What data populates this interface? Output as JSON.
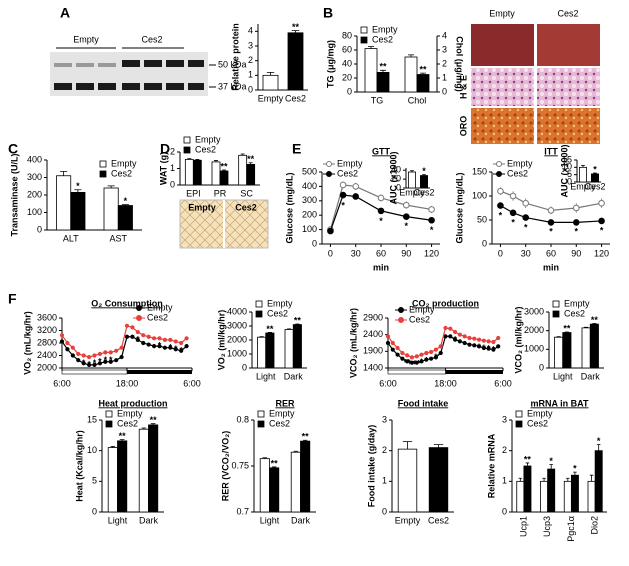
{
  "figure": {
    "panel_labels": [
      "A",
      "B",
      "C",
      "D",
      "E",
      "F"
    ],
    "blot": {
      "lanes": [
        "Empty",
        "Ces2"
      ],
      "markers": [
        "50 kDa",
        "37 kDa"
      ]
    },
    "histology": {
      "columns": [
        "Empty",
        "Ces2"
      ],
      "rows": [
        "H & E",
        "ORO"
      ]
    },
    "wat_images": [
      "Empty",
      "Ces2"
    ]
  },
  "chart_data": [
    {
      "type": "bar",
      "ylabel": "Relative protein",
      "categories": [
        "Empty",
        "Ces2"
      ],
      "series": [
        {
          "values": [
            1.0,
            3.9
          ],
          "errors": [
            0.2,
            0.15
          ],
          "colors": [
            "#ffffff",
            "#000000"
          ],
          "significance": [
            null,
            "**"
          ]
        }
      ],
      "ylim": [
        0,
        4.5
      ],
      "yticks": [
        0,
        1,
        2,
        3,
        4
      ]
    },
    {
      "type": "bar",
      "ylabel": "TG (μg/mg)",
      "y2label": "Chol (μg/mg)",
      "categories": [
        "TG",
        "Chol"
      ],
      "category_axis": [
        "y",
        "y2"
      ],
      "series": [
        {
          "name": "Empty",
          "color": "#ffffff",
          "values": [
            62,
            2.5
          ],
          "errors": [
            3,
            0.15
          ]
        },
        {
          "name": "Ces2",
          "color": "#000000",
          "values": [
            28,
            1.25
          ],
          "errors": [
            3,
            0.1
          ],
          "significance": [
            "**",
            "**"
          ]
        }
      ],
      "ylim": [
        0,
        80
      ],
      "yticks": [
        0,
        20,
        40,
        60,
        80
      ],
      "y2lim": [
        0,
        4
      ],
      "y2ticks": [
        0,
        1,
        2,
        3,
        4
      ],
      "legend": "top-left"
    },
    {
      "type": "bar",
      "ylabel": "Transaminase (U/L)",
      "categories": [
        "ALT",
        "AST"
      ],
      "series": [
        {
          "name": "Empty",
          "color": "#ffffff",
          "values": [
            310,
            240
          ],
          "errors": [
            25,
            12
          ]
        },
        {
          "name": "Ces2",
          "color": "#000000",
          "values": [
            215,
            140
          ],
          "errors": [
            15,
            5
          ],
          "significance": [
            "*",
            "*"
          ]
        }
      ],
      "ylim": [
        0,
        400
      ],
      "yticks": [
        0,
        100,
        200,
        300,
        400
      ],
      "legend": "top-right"
    },
    {
      "type": "bar",
      "ylabel": "WAT (g)",
      "categories": [
        "EPI",
        "PR",
        "SC"
      ],
      "series": [
        {
          "name": "Empty",
          "color": "#ffffff",
          "values": [
            1.55,
            1.4,
            1.8
          ],
          "errors": [
            0.05,
            0.08,
            0.08
          ]
        },
        {
          "name": "Ces2",
          "color": "#000000",
          "values": [
            1.5,
            0.85,
            1.25
          ],
          "errors": [
            0.05,
            0.06,
            0.1
          ],
          "significance": [
            null,
            "**",
            "**"
          ]
        }
      ],
      "ylim": [
        0,
        2
      ],
      "yticks": [
        0,
        1,
        2
      ],
      "legend": "top-left"
    },
    {
      "type": "line",
      "title": "GTT",
      "ylabel": "Glucose (mg/dL)",
      "xlabel": "min",
      "x": [
        0,
        15,
        30,
        60,
        90,
        120
      ],
      "series": [
        {
          "name": "Empty",
          "color": "#777777",
          "marker_fill": "#ffffff",
          "values": [
            100,
            410,
            400,
            320,
            270,
            240
          ],
          "errors": [
            10,
            25,
            25,
            25,
            25,
            25
          ]
        },
        {
          "name": "Ces2",
          "color": "#000000",
          "marker_fill": "#000000",
          "values": [
            90,
            340,
            330,
            230,
            190,
            165
          ],
          "errors": [
            10,
            20,
            20,
            20,
            15,
            15
          ],
          "significance": [
            null,
            "*",
            null,
            "*",
            "*",
            "*"
          ]
        }
      ],
      "xlim": [
        -10,
        130
      ],
      "xticks": [
        0,
        30,
        60,
        90,
        120
      ],
      "ylim": [
        0,
        500
      ],
      "yticks": [
        0,
        100,
        200,
        300,
        400,
        500
      ],
      "legend": "top-left"
    },
    {
      "type": "bar",
      "ylabel": "AUC (x1000)",
      "categories": [
        "Empty",
        "Ces2"
      ],
      "series": [
        {
          "values": [
            36,
            28
          ],
          "errors": [
            3,
            2
          ],
          "colors": [
            "#ffffff",
            "#000000"
          ],
          "significance": [
            null,
            "*"
          ]
        }
      ],
      "ylim": [
        0,
        45
      ],
      "yticks": [
        0,
        20,
        40
      ]
    },
    {
      "type": "line",
      "title": "ITT",
      "ylabel": "Glucose (mg/dL)",
      "xlabel": "min",
      "x": [
        0,
        15,
        30,
        60,
        90,
        120
      ],
      "series": [
        {
          "name": "Empty",
          "color": "#777777",
          "marker_fill": "#ffffff",
          "values": [
            110,
            100,
            85,
            70,
            75,
            85
          ],
          "errors": [
            8,
            10,
            10,
            8,
            10,
            10
          ]
        },
        {
          "name": "Ces2",
          "color": "#000000",
          "marker_fill": "#000000",
          "values": [
            80,
            65,
            55,
            45,
            45,
            48
          ],
          "errors": [
            5,
            5,
            5,
            4,
            4,
            4
          ],
          "significance": [
            "*",
            "*",
            "*",
            "*",
            "*",
            "*"
          ]
        }
      ],
      "xlim": [
        -10,
        130
      ],
      "xticks": [
        0,
        30,
        60,
        90,
        120
      ],
      "ylim": [
        0,
        150
      ],
      "yticks": [
        0,
        50,
        100,
        150
      ],
      "legend": "top-left"
    },
    {
      "type": "bar",
      "ylabel": "AUC (x1000)",
      "categories": [
        "Empty",
        "Ces2"
      ],
      "series": [
        {
          "values": [
            10,
            5.5
          ],
          "errors": [
            1.2,
            0.6
          ],
          "colors": [
            "#ffffff",
            "#000000"
          ],
          "significance": [
            null,
            "*"
          ]
        }
      ],
      "ylim": [
        0,
        15
      ],
      "yticks": [
        0,
        5,
        10,
        15
      ]
    },
    {
      "type": "line",
      "title": "O₂ Consumption",
      "ylabel": "VO₂ (mL/kg/hr)",
      "light_dark_bar": true,
      "x": [
        0,
        1,
        2,
        3,
        4,
        5,
        6,
        7,
        8,
        9,
        10,
        11,
        12,
        13,
        14,
        15,
        16,
        17,
        18,
        19,
        20,
        21,
        22,
        23
      ],
      "series": [
        {
          "name": "Empty",
          "color": "#000000",
          "marker_fill": "#000000",
          "values": [
            2850,
            2600,
            2400,
            2250,
            2150,
            2100,
            2100,
            2150,
            2200,
            2200,
            2250,
            2350,
            3000,
            3000,
            2900,
            2800,
            2750,
            2700,
            2700,
            2650,
            2650,
            2600,
            2550,
            2700
          ]
        },
        {
          "name": "Ces2",
          "color": "#e8413c",
          "marker_fill": "#e8413c",
          "values": [
            3050,
            2800,
            2650,
            2450,
            2400,
            2350,
            2400,
            2450,
            2500,
            2500,
            2550,
            2650,
            3350,
            3300,
            3150,
            3050,
            3000,
            2950,
            2950,
            2900,
            2900,
            2850,
            2800,
            2950
          ],
          "significance": [
            null,
            null,
            null,
            "*",
            "*",
            "*",
            "*",
            "*",
            "*",
            "*",
            null,
            null,
            null,
            null,
            "*",
            null,
            null,
            null,
            "*",
            null,
            "*",
            "*",
            "*",
            null
          ]
        }
      ],
      "xlim": [
        0,
        24
      ],
      "xticks": [
        {
          "value": 0,
          "label": "6:00"
        },
        {
          "value": 12,
          "label": "18:00"
        },
        {
          "value": 24,
          "label": "6:00"
        }
      ],
      "ylim": [
        2000,
        3600
      ],
      "yticks": [
        2000,
        2400,
        2800,
        3200,
        3600
      ],
      "legend": "top-right"
    },
    {
      "type": "bar",
      "ylabel": "VO₂ (ml/kg/hr)",
      "categories": [
        "Light",
        "Dark"
      ],
      "series": [
        {
          "name": "Empty",
          "color": "#ffffff",
          "values": [
            2200,
            2750
          ],
          "errors": [
            40,
            40
          ]
        },
        {
          "name": "Ces2",
          "color": "#000000",
          "values": [
            2500,
            3100
          ],
          "errors": [
            40,
            40
          ],
          "significance": [
            "**",
            "**"
          ]
        }
      ],
      "ylim": [
        0,
        4000
      ],
      "yticks": [
        0,
        1000,
        2000,
        3000,
        4000
      ],
      "legend": "top-left"
    },
    {
      "type": "line",
      "title": "CO₂ production",
      "ylabel": "VCO₂ (mL/kg/hr)",
      "light_dark_bar": true,
      "x": [
        0,
        1,
        2,
        3,
        4,
        5,
        6,
        7,
        8,
        9,
        10,
        11,
        12,
        13,
        14,
        15,
        16,
        17,
        18,
        19,
        20,
        21,
        22,
        23
      ],
      "series": [
        {
          "name": "Empty",
          "color": "#000000",
          "marker_fill": "#000000",
          "values": [
            2150,
            1950,
            1800,
            1680,
            1600,
            1560,
            1560,
            1600,
            1650,
            1680,
            1720,
            1850,
            2350,
            2350,
            2250,
            2200,
            2150,
            2100,
            2080,
            2050,
            2000,
            1980,
            1950,
            2050
          ]
        },
        {
          "name": "Ces2",
          "color": "#e8413c",
          "marker_fill": "#e8413c",
          "values": [
            2350,
            2150,
            2000,
            1850,
            1780,
            1720,
            1750,
            1800,
            1850,
            1880,
            1950,
            2050,
            2600,
            2580,
            2480,
            2400,
            2350,
            2300,
            2280,
            2250,
            2220,
            2200,
            2180,
            2300
          ],
          "significance": [
            null,
            null,
            null,
            "*",
            "**",
            "**",
            "**",
            "*",
            "*",
            null,
            "*",
            null,
            null,
            null,
            "*",
            null,
            null,
            null,
            null,
            "*",
            "*",
            "*",
            "*",
            null
          ]
        }
      ],
      "xlim": [
        0,
        24
      ],
      "xticks": [
        {
          "value": 0,
          "label": "6:00"
        },
        {
          "value": 12,
          "label": "18:00"
        },
        {
          "value": 24,
          "label": "6:00"
        }
      ],
      "ylim": [
        1400,
        2900
      ],
      "yticks": [
        1400,
        1900,
        2400,
        2900
      ],
      "legend": "top-left"
    },
    {
      "type": "bar",
      "ylabel": "VCO₂ (ml/kg/hr)",
      "categories": [
        "Light",
        "Dark"
      ],
      "series": [
        {
          "name": "Empty",
          "color": "#ffffff",
          "values": [
            1650,
            2150
          ],
          "errors": [
            30,
            30
          ]
        },
        {
          "name": "Ces2",
          "color": "#000000",
          "values": [
            1900,
            2350
          ],
          "errors": [
            30,
            30
          ],
          "significance": [
            "**",
            "**"
          ]
        }
      ],
      "ylim": [
        0,
        3000
      ],
      "yticks": [
        0,
        1000,
        2000,
        3000
      ],
      "legend": "top-left"
    },
    {
      "type": "bar",
      "title": "Heat production",
      "ylabel": "Heat (Kcal/kg/hr)",
      "categories": [
        "Light",
        "Dark"
      ],
      "series": [
        {
          "name": "Empty",
          "color": "#ffffff",
          "values": [
            10.5,
            13.5
          ],
          "errors": [
            0.2,
            0.2
          ]
        },
        {
          "name": "Ces2",
          "color": "#000000",
          "values": [
            11.6,
            14.2
          ],
          "errors": [
            0.2,
            0.2
          ],
          "significance": [
            "**",
            "**"
          ]
        }
      ],
      "ylim": [
        0,
        15
      ],
      "yticks": [
        0,
        5,
        10,
        15
      ],
      "legend": "top-left"
    },
    {
      "type": "bar",
      "title": "RER",
      "ylabel": "RER (VCO₂/VO₂)",
      "categories": [
        "Light",
        "Dark"
      ],
      "series": [
        {
          "name": "Empty",
          "color": "#ffffff",
          "values": [
            0.758,
            0.765
          ],
          "errors": [
            0.001,
            0.001
          ]
        },
        {
          "name": "Ces2",
          "color": "#000000",
          "values": [
            0.748,
            0.777
          ],
          "errors": [
            0.001,
            0.001
          ],
          "significance": [
            "**",
            "**"
          ]
        }
      ],
      "ylim": [
        0.7,
        0.8
      ],
      "yticks": [
        0.7,
        0.75,
        0.8
      ],
      "legend": "top-left"
    },
    {
      "type": "bar",
      "title": "Food intake",
      "ylabel": "Food intake (g/day)",
      "categories": [
        "Empty",
        "Ces2"
      ],
      "series": [
        {
          "values": [
            2.05,
            2.1
          ],
          "errors": [
            0.25,
            0.1
          ],
          "colors": [
            "#ffffff",
            "#000000"
          ]
        }
      ],
      "ylim": [
        0,
        3
      ],
      "yticks": [
        0,
        1,
        2,
        3
      ]
    },
    {
      "type": "bar",
      "title": "mRNA in BAT",
      "ylabel": "Relative mRNA",
      "categories": [
        "Ucp1",
        "Ucp3",
        "Pgc1α",
        "Dio2"
      ],
      "series": [
        {
          "name": "Empty",
          "color": "#ffffff",
          "values": [
            1,
            1,
            1,
            1
          ],
          "errors": [
            0.1,
            0.1,
            0.1,
            0.2
          ]
        },
        {
          "name": "Ces2",
          "color": "#000000",
          "values": [
            1.5,
            1.4,
            1.2,
            2.0
          ],
          "errors": [
            0.1,
            0.15,
            0.1,
            0.2
          ],
          "significance": [
            "**",
            "*",
            "*",
            "*"
          ]
        }
      ],
      "ylim": [
        0,
        3
      ],
      "yticks": [
        0,
        1,
        2,
        3
      ],
      "legend": "top-left"
    }
  ]
}
